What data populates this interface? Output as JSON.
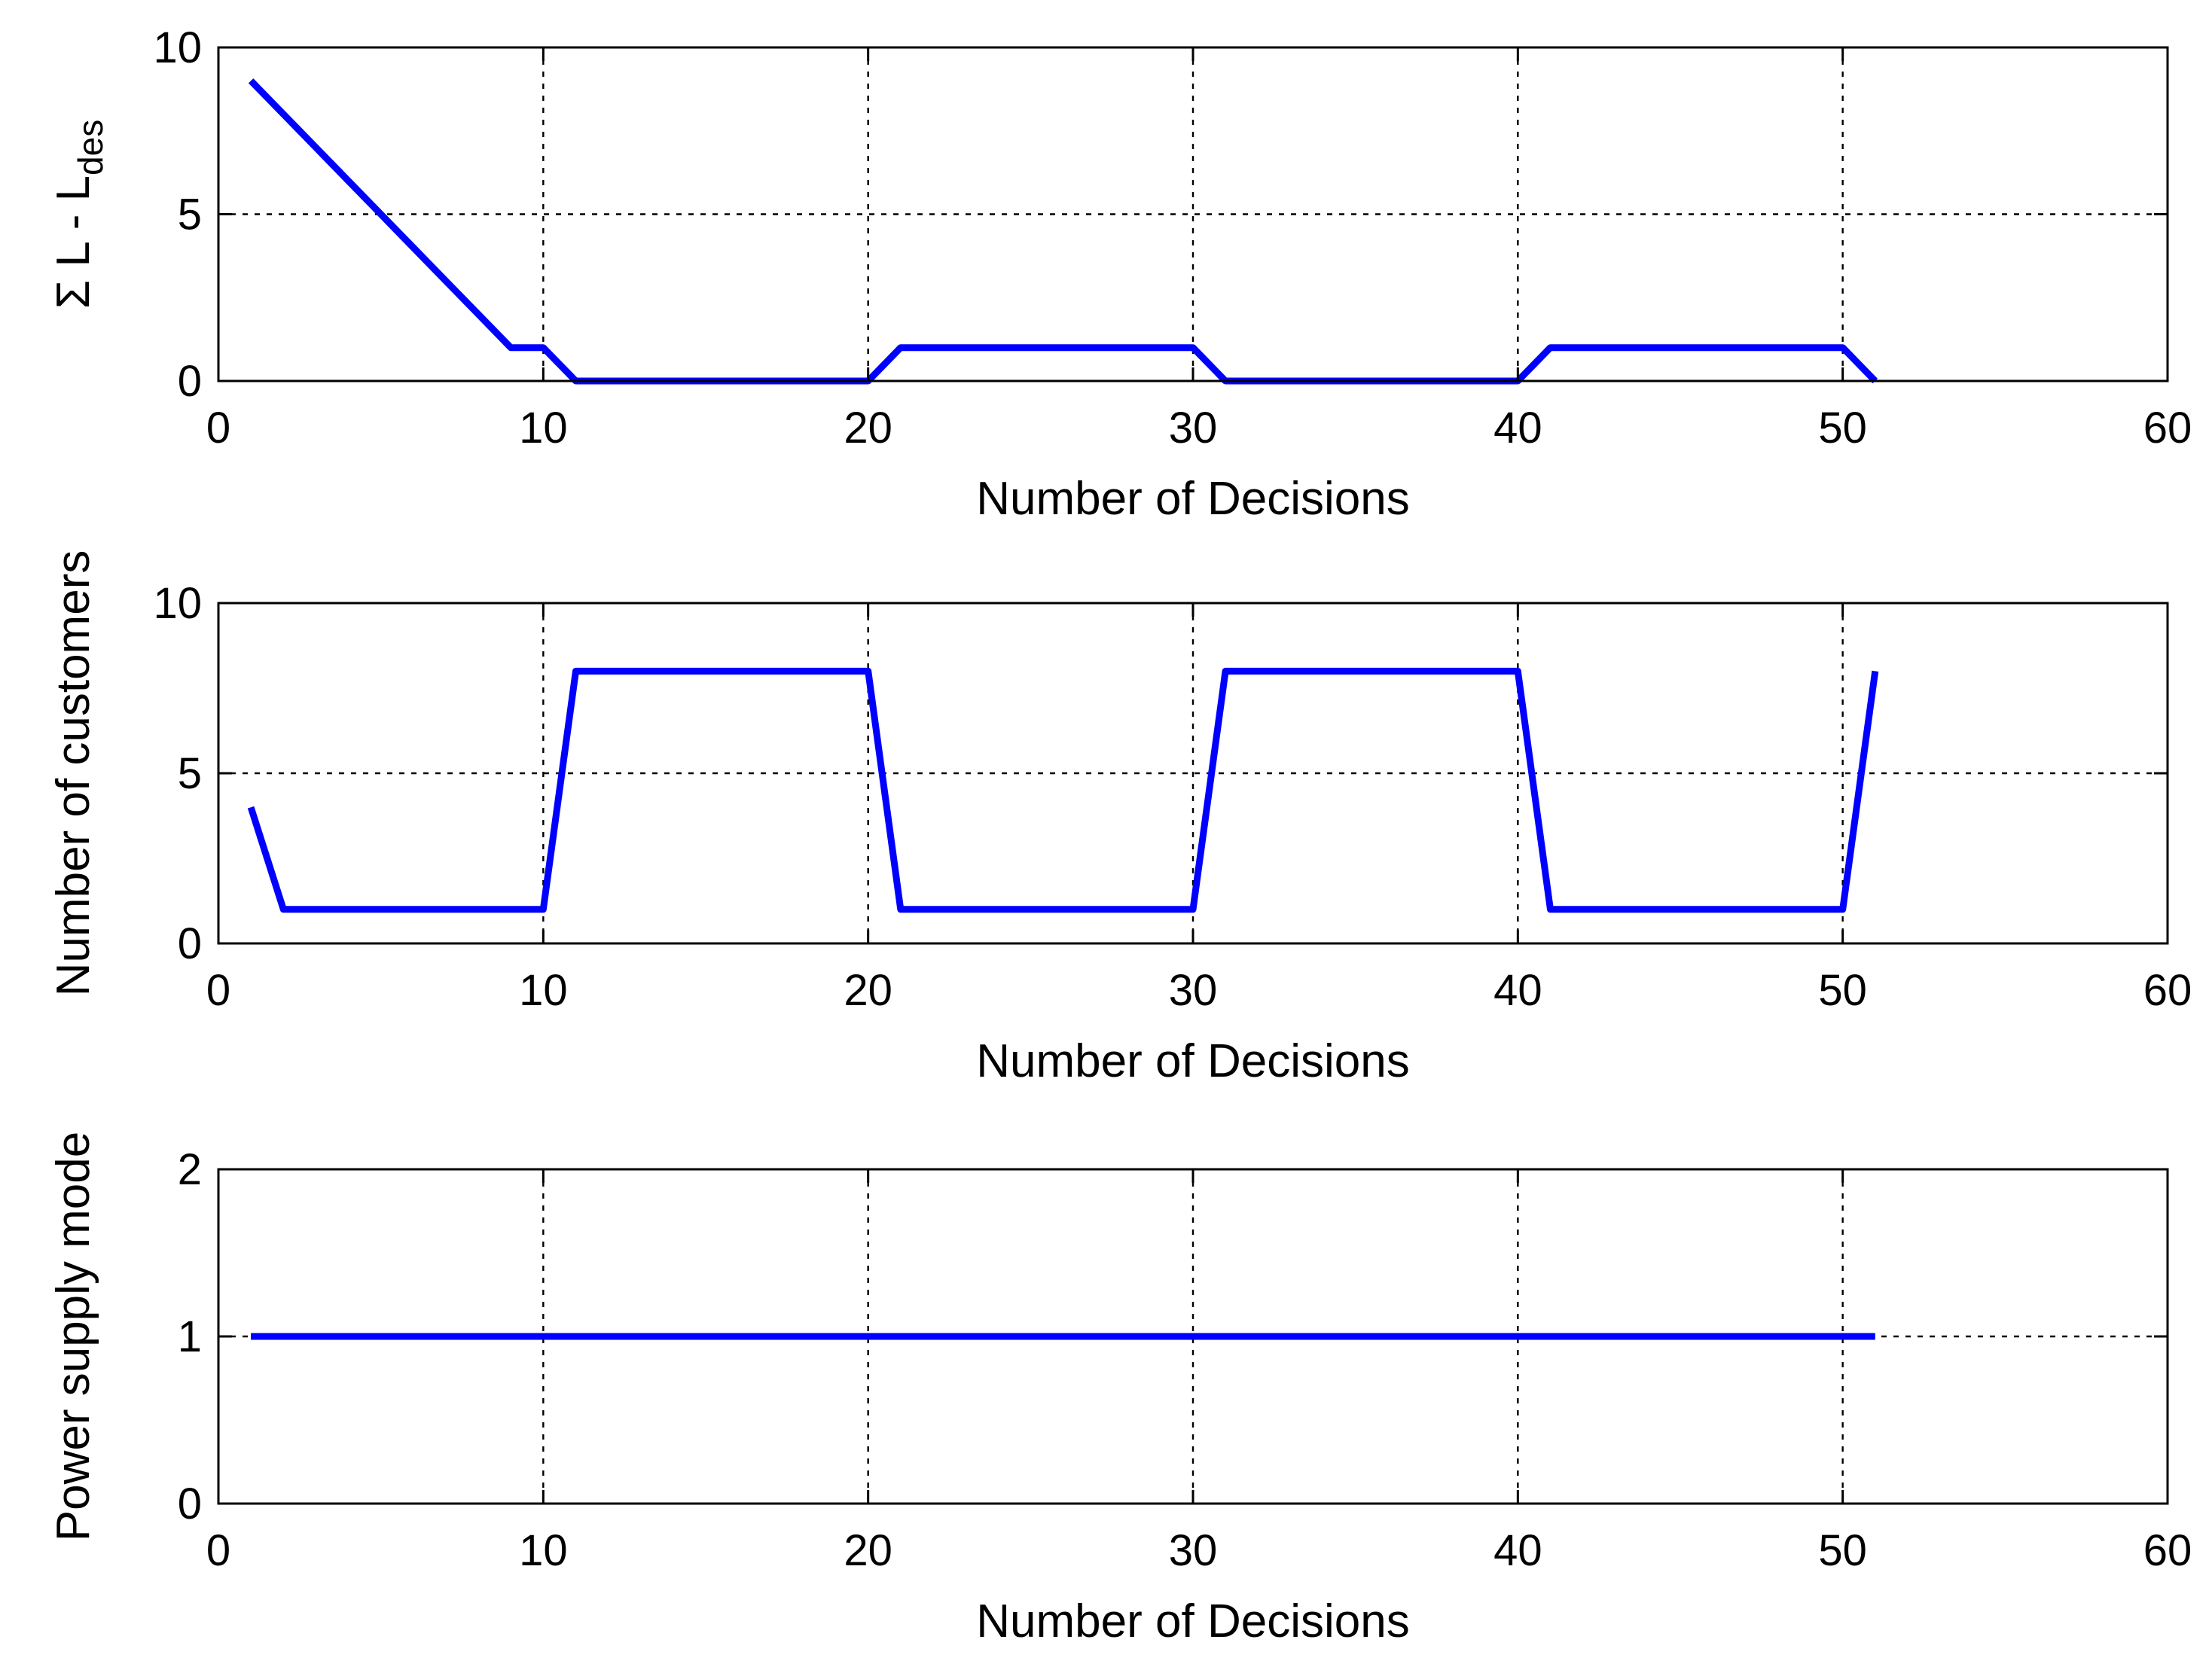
{
  "series_color": "#0000ff",
  "chart_data": [
    {
      "type": "line",
      "xlabel": "Number of Decisions",
      "ylabel": "Σ L - L",
      "ylabel_sub": "des",
      "xlim": [
        0,
        60
      ],
      "ylim": [
        0,
        10
      ],
      "xticks": [
        0,
        10,
        20,
        30,
        40,
        50,
        60
      ],
      "yticks": [
        0,
        5,
        10
      ],
      "grid": true,
      "series": [
        {
          "x": [
            1,
            2,
            3,
            4,
            5,
            6,
            7,
            8,
            9,
            10,
            11,
            12,
            13,
            14,
            15,
            16,
            17,
            18,
            19,
            20,
            21,
            22,
            23,
            24,
            25,
            26,
            27,
            28,
            29,
            30,
            31,
            32,
            33,
            34,
            35,
            36,
            37,
            38,
            39,
            40,
            41,
            42,
            43,
            44,
            45,
            46,
            47,
            48,
            49,
            50,
            51
          ],
          "values": [
            9,
            8,
            7,
            6,
            5,
            4,
            3,
            2,
            1,
            1,
            0,
            0,
            0,
            0,
            0,
            0,
            0,
            0,
            0,
            0,
            1,
            1,
            1,
            1,
            1,
            1,
            1,
            1,
            1,
            1,
            0,
            0,
            0,
            0,
            0,
            0,
            0,
            0,
            0,
            0,
            1,
            1,
            1,
            1,
            1,
            1,
            1,
            1,
            1,
            1,
            0
          ]
        }
      ]
    },
    {
      "type": "line",
      "xlabel": "Number of Decisions",
      "ylabel": "Number of customers",
      "xlim": [
        0,
        60
      ],
      "ylim": [
        0,
        10
      ],
      "xticks": [
        0,
        10,
        20,
        30,
        40,
        50,
        60
      ],
      "yticks": [
        0,
        5,
        10
      ],
      "grid": true,
      "series": [
        {
          "x": [
            1,
            2,
            3,
            4,
            5,
            6,
            7,
            8,
            9,
            10,
            11,
            12,
            13,
            14,
            15,
            16,
            17,
            18,
            19,
            20,
            21,
            22,
            23,
            24,
            25,
            26,
            27,
            28,
            29,
            30,
            31,
            32,
            33,
            34,
            35,
            36,
            37,
            38,
            39,
            40,
            41,
            42,
            43,
            44,
            45,
            46,
            47,
            48,
            49,
            50,
            51
          ],
          "values": [
            4,
            1,
            1,
            1,
            1,
            1,
            1,
            1,
            1,
            1,
            8,
            8,
            8,
            8,
            8,
            8,
            8,
            8,
            8,
            8,
            1,
            1,
            1,
            1,
            1,
            1,
            1,
            1,
            1,
            1,
            8,
            8,
            8,
            8,
            8,
            8,
            8,
            8,
            8,
            8,
            1,
            1,
            1,
            1,
            1,
            1,
            1,
            1,
            1,
            1,
            8
          ]
        }
      ]
    },
    {
      "type": "line",
      "xlabel": "Number of Decisions",
      "ylabel": "Power supply mode",
      "xlim": [
        0,
        60
      ],
      "ylim": [
        0,
        2
      ],
      "xticks": [
        0,
        10,
        20,
        30,
        40,
        50,
        60
      ],
      "yticks": [
        0,
        1,
        2
      ],
      "grid": true,
      "series": [
        {
          "x": [
            1,
            2,
            3,
            4,
            5,
            6,
            7,
            8,
            9,
            10,
            11,
            12,
            13,
            14,
            15,
            16,
            17,
            18,
            19,
            20,
            21,
            22,
            23,
            24,
            25,
            26,
            27,
            28,
            29,
            30,
            31,
            32,
            33,
            34,
            35,
            36,
            37,
            38,
            39,
            40,
            41,
            42,
            43,
            44,
            45,
            46,
            47,
            48,
            49,
            50,
            51
          ],
          "values": [
            1,
            1,
            1,
            1,
            1,
            1,
            1,
            1,
            1,
            1,
            1,
            1,
            1,
            1,
            1,
            1,
            1,
            1,
            1,
            1,
            1,
            1,
            1,
            1,
            1,
            1,
            1,
            1,
            1,
            1,
            1,
            1,
            1,
            1,
            1,
            1,
            1,
            1,
            1,
            1,
            1,
            1,
            1,
            1,
            1,
            1,
            1,
            1,
            1,
            1,
            1
          ]
        }
      ]
    }
  ]
}
